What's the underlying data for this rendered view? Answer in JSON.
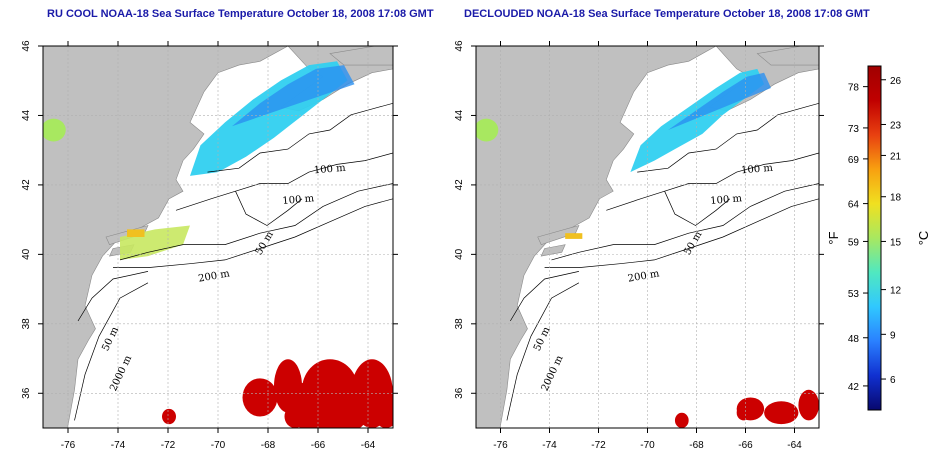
{
  "chart_data": [
    {
      "type": "map",
      "title": "RU COOL NOAA-18 Sea Surface Temperature October 18, 2008 17:08 GMT",
      "x_ticks": [
        -76,
        -74,
        -72,
        -70,
        -68,
        -66,
        -64
      ],
      "y_ticks": [
        36,
        38,
        40,
        42,
        44,
        46
      ],
      "xlim": [
        -77,
        -63
      ],
      "ylim": [
        35,
        46
      ],
      "grid": true,
      "contour_labels": [
        "100 m",
        "100 m",
        "50 m",
        "200 m",
        "50 m",
        "2000 m"
      ]
    },
    {
      "type": "map",
      "title": "DECLOUDED NOAA-18 Sea Surface Temperature October 18, 2008 17:08 GMT",
      "x_ticks": [
        -76,
        -74,
        -72,
        -70,
        -68,
        -66,
        -64
      ],
      "y_ticks": [
        36,
        38,
        40,
        42,
        44,
        46
      ],
      "xlim": [
        -77,
        -63
      ],
      "ylim": [
        35,
        46
      ],
      "grid": true,
      "contour_labels": [
        "100 m",
        "100 m",
        "50 m",
        "200 m",
        "50 m",
        "2000 m"
      ]
    }
  ],
  "colorbar": {
    "fahrenheit_ticks": [
      "78",
      "73",
      "69",
      "64",
      "59",
      "53",
      "48",
      "42"
    ],
    "celsius_ticks": [
      "26",
      "23",
      "21",
      "18",
      "15",
      "12",
      "9",
      "6"
    ],
    "fahrenheit_unit": "°F",
    "celsius_unit": "°C",
    "colors": [
      "#08086e",
      "#1030d0",
      "#2a80ff",
      "#30c8ff",
      "#50e8c0",
      "#a8e860",
      "#f0e020",
      "#f8a010",
      "#e84010",
      "#c00000",
      "#a00000"
    ]
  },
  "colors": {
    "land": "#c0c0c0",
    "title": "#1a1aa8",
    "warm_water": "#cc0000",
    "cool_water": "#30d0f0"
  }
}
